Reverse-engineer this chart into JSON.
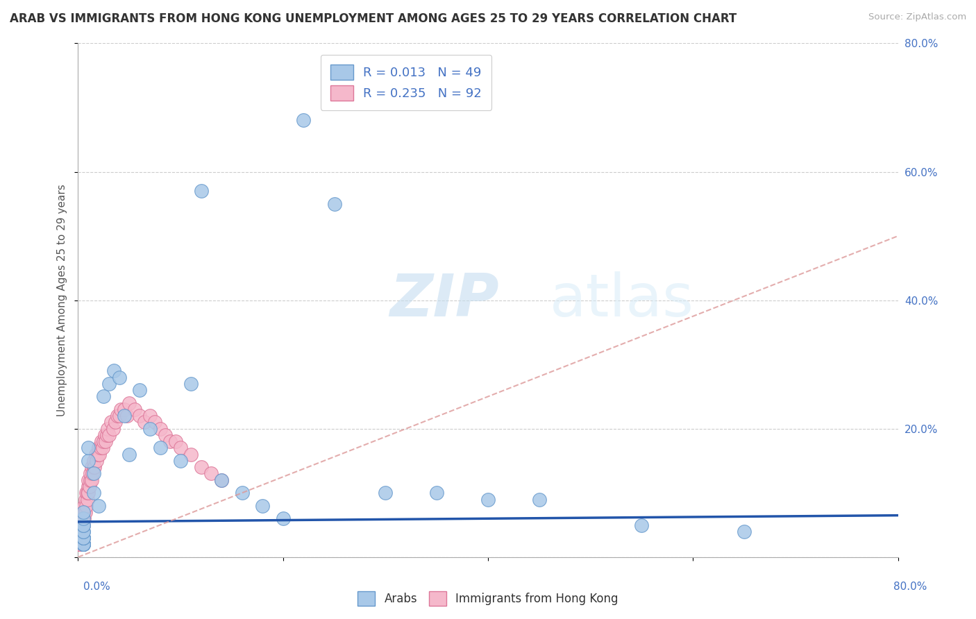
{
  "title": "ARAB VS IMMIGRANTS FROM HONG KONG UNEMPLOYMENT AMONG AGES 25 TO 29 YEARS CORRELATION CHART",
  "source": "Source: ZipAtlas.com",
  "ylabel": "Unemployment Among Ages 25 to 29 years",
  "xlim": [
    0.0,
    0.8
  ],
  "ylim": [
    0.0,
    0.8
  ],
  "legend_arab_label": "R = 0.013   N = 49",
  "legend_hk_label": "R = 0.235   N = 92",
  "arab_color": "#a8c8e8",
  "arab_edge_color": "#6699cc",
  "hk_color": "#f5b8cb",
  "hk_edge_color": "#dd7799",
  "trend_arab_color": "#2255aa",
  "trend_hk_color": "#dd9999",
  "watermark_zip": "ZIP",
  "watermark_atlas": "atlas",
  "arab_x": [
    0.005,
    0.005,
    0.005,
    0.005,
    0.005,
    0.005,
    0.005,
    0.005,
    0.005,
    0.005,
    0.005,
    0.005,
    0.005,
    0.005,
    0.005,
    0.005,
    0.005,
    0.005,
    0.005,
    0.005,
    0.01,
    0.01,
    0.015,
    0.015,
    0.02,
    0.025,
    0.03,
    0.035,
    0.04,
    0.045,
    0.05,
    0.06,
    0.07,
    0.08,
    0.1,
    0.11,
    0.12,
    0.14,
    0.16,
    0.18,
    0.2,
    0.22,
    0.25,
    0.3,
    0.35,
    0.4,
    0.45,
    0.65,
    0.55
  ],
  "arab_y": [
    0.02,
    0.02,
    0.02,
    0.02,
    0.02,
    0.02,
    0.02,
    0.02,
    0.02,
    0.02,
    0.03,
    0.03,
    0.03,
    0.03,
    0.04,
    0.04,
    0.05,
    0.05,
    0.06,
    0.07,
    0.15,
    0.17,
    0.1,
    0.13,
    0.08,
    0.25,
    0.27,
    0.29,
    0.28,
    0.22,
    0.16,
    0.26,
    0.2,
    0.17,
    0.15,
    0.27,
    0.57,
    0.12,
    0.1,
    0.08,
    0.06,
    0.68,
    0.55,
    0.1,
    0.1,
    0.09,
    0.09,
    0.04,
    0.05
  ],
  "hk_x": [
    0.002,
    0.002,
    0.002,
    0.002,
    0.002,
    0.002,
    0.002,
    0.002,
    0.002,
    0.002,
    0.002,
    0.002,
    0.002,
    0.002,
    0.002,
    0.002,
    0.002,
    0.002,
    0.002,
    0.002,
    0.003,
    0.003,
    0.003,
    0.003,
    0.003,
    0.003,
    0.003,
    0.004,
    0.004,
    0.004,
    0.004,
    0.005,
    0.005,
    0.005,
    0.006,
    0.006,
    0.006,
    0.007,
    0.007,
    0.008,
    0.008,
    0.009,
    0.009,
    0.01,
    0.01,
    0.01,
    0.011,
    0.012,
    0.012,
    0.013,
    0.013,
    0.014,
    0.015,
    0.015,
    0.016,
    0.017,
    0.018,
    0.019,
    0.02,
    0.021,
    0.022,
    0.023,
    0.024,
    0.025,
    0.026,
    0.027,
    0.028,
    0.029,
    0.03,
    0.032,
    0.034,
    0.036,
    0.038,
    0.04,
    0.042,
    0.045,
    0.048,
    0.05,
    0.055,
    0.06,
    0.065,
    0.07,
    0.075,
    0.08,
    0.085,
    0.09,
    0.095,
    0.1,
    0.11,
    0.12,
    0.13,
    0.14
  ],
  "hk_y": [
    0.02,
    0.02,
    0.02,
    0.02,
    0.02,
    0.02,
    0.02,
    0.02,
    0.02,
    0.02,
    0.02,
    0.02,
    0.02,
    0.02,
    0.02,
    0.02,
    0.02,
    0.02,
    0.02,
    0.02,
    0.03,
    0.03,
    0.03,
    0.03,
    0.04,
    0.04,
    0.04,
    0.04,
    0.05,
    0.05,
    0.05,
    0.05,
    0.06,
    0.07,
    0.06,
    0.07,
    0.08,
    0.07,
    0.09,
    0.08,
    0.1,
    0.09,
    0.1,
    0.11,
    0.1,
    0.12,
    0.11,
    0.12,
    0.13,
    0.12,
    0.14,
    0.13,
    0.14,
    0.15,
    0.14,
    0.16,
    0.15,
    0.16,
    0.17,
    0.16,
    0.17,
    0.18,
    0.17,
    0.18,
    0.19,
    0.18,
    0.19,
    0.2,
    0.19,
    0.21,
    0.2,
    0.21,
    0.22,
    0.22,
    0.23,
    0.23,
    0.22,
    0.24,
    0.23,
    0.22,
    0.21,
    0.22,
    0.21,
    0.2,
    0.19,
    0.18,
    0.18,
    0.17,
    0.16,
    0.14,
    0.13,
    0.12
  ],
  "hk_trend_x0": 0.0,
  "hk_trend_x1": 0.8,
  "hk_trend_y0": 0.0,
  "hk_trend_y1": 0.5,
  "arab_trend_x0": 0.0,
  "arab_trend_x1": 0.8,
  "arab_trend_y0": 0.055,
  "arab_trend_y1": 0.065
}
